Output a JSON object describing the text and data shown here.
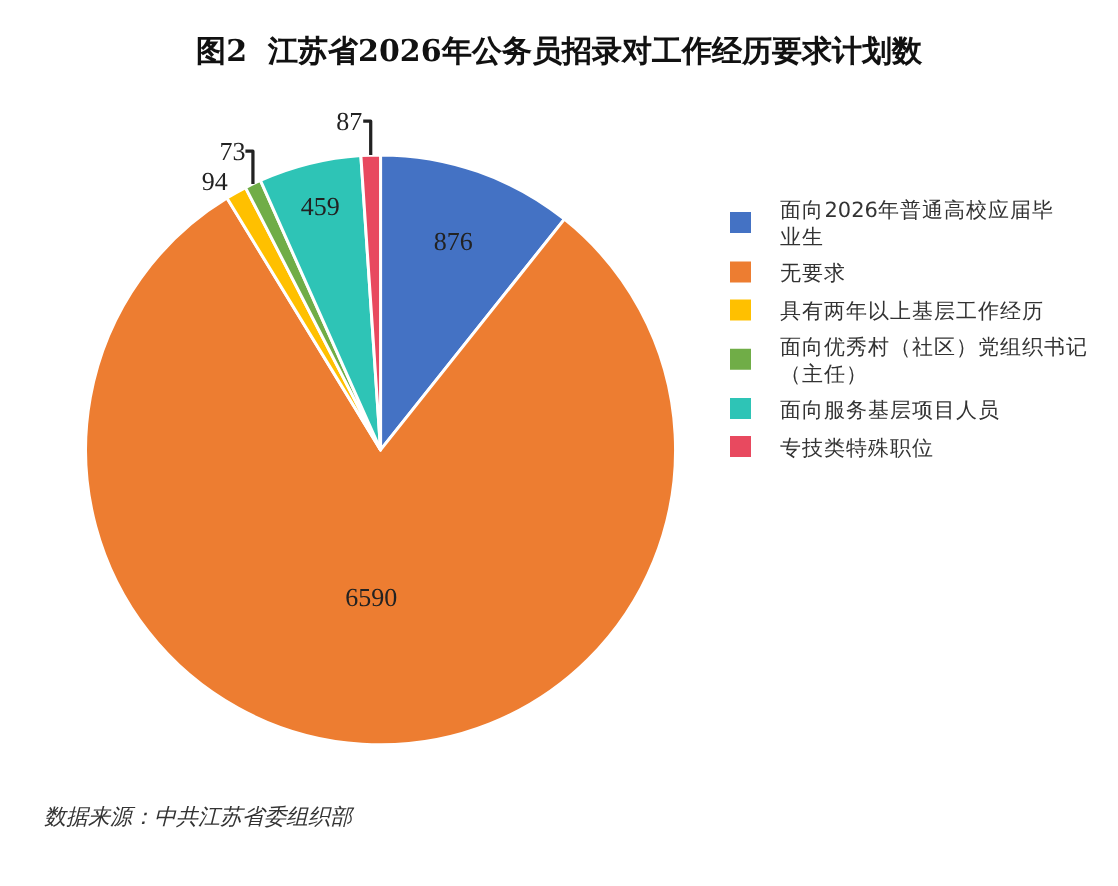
{
  "chart_data": {
    "type": "pie",
    "title": "图2  江苏省2026年公务员招录对工作经历要求计划数",
    "categories": [
      "面向2026年普通高校应届毕业生",
      "无要求",
      "具有两年以上基层工作经历",
      "面向优秀村（社区）党组织书记（主任）",
      "面向服务基层项目人员",
      "专技类特殊职位"
    ],
    "values": [
      876,
      6590,
      94,
      73,
      459,
      87
    ],
    "colors": [
      "#4472c4",
      "#ed7d31",
      "#ffc000",
      "#70ad47",
      "#2ec4b6",
      "#e8495f"
    ],
    "data_labels": true,
    "legend": "right",
    "annotations": [
      "数据来源：中共江苏省委组织部"
    ]
  }
}
